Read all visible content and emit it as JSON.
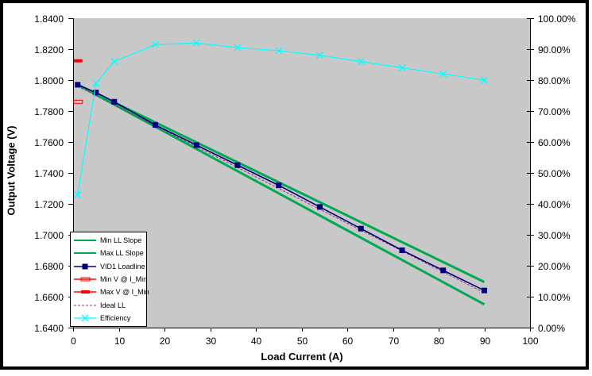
{
  "chart_data": {
    "type": "line",
    "title": "",
    "xlabel": "Load Current (A)",
    "ylabel": "Output Voltage (V)",
    "grid": false,
    "plot_bg": "#C8C8C8",
    "legend_position": "inside-bottom-left",
    "axes": {
      "bottom": {
        "min": 0,
        "max": 100,
        "step": 10,
        "decimals": 0,
        "suffix": ""
      },
      "left": {
        "min": 1.64,
        "max": 1.84,
        "step": 0.02,
        "decimals": 4,
        "suffix": ""
      },
      "right": {
        "min": 0,
        "max": 100,
        "step": 10,
        "decimals": 2,
        "suffix": "%"
      }
    },
    "x": [
      1,
      5,
      9,
      18,
      27,
      36,
      45,
      54,
      63,
      72,
      81,
      90
    ],
    "series": [
      {
        "name": "Min LL Slope",
        "axis": "left",
        "color": "#00AA55",
        "line_width": 3,
        "marker": "none",
        "points": [
          [
            1,
            1.797
          ],
          [
            90,
            1.6695
          ]
        ]
      },
      {
        "name": "Max LL Slope",
        "axis": "left",
        "color": "#00AA55",
        "line_width": 3,
        "marker": "none",
        "points": [
          [
            1,
            1.797
          ],
          [
            90,
            1.655
          ]
        ]
      },
      {
        "name": "VID1 Loadline",
        "axis": "left",
        "color": "#000080",
        "line_width": 1.6,
        "marker": "square",
        "values": [
          1.797,
          1.792,
          1.786,
          1.771,
          1.758,
          1.745,
          1.732,
          1.718,
          1.704,
          1.69,
          1.677,
          1.664
        ]
      },
      {
        "name": "Min V @ I_Min",
        "axis": "left",
        "color": "#FF0000",
        "line_width": 1.5,
        "marker": "dash-hollow",
        "points": [
          [
            1,
            1.786
          ]
        ]
      },
      {
        "name": "Max V @ I_Min",
        "axis": "left",
        "color": "#FF0000",
        "line_width": 1.5,
        "marker": "dash-solid",
        "points": [
          [
            1,
            1.8125
          ]
        ]
      },
      {
        "name": "Ideal LL",
        "axis": "left",
        "color": "#993366",
        "line_width": 1,
        "marker": "none",
        "dashed": true,
        "points": [
          [
            1,
            1.796
          ],
          [
            90,
            1.6625
          ]
        ]
      },
      {
        "name": "Efficiency",
        "axis": "right",
        "color": "#00FFFF",
        "line_width": 1.2,
        "marker": "x",
        "values": [
          43,
          79,
          86,
          91.5,
          92,
          90.5,
          89.5,
          88,
          86,
          84,
          82,
          80
        ]
      }
    ]
  }
}
